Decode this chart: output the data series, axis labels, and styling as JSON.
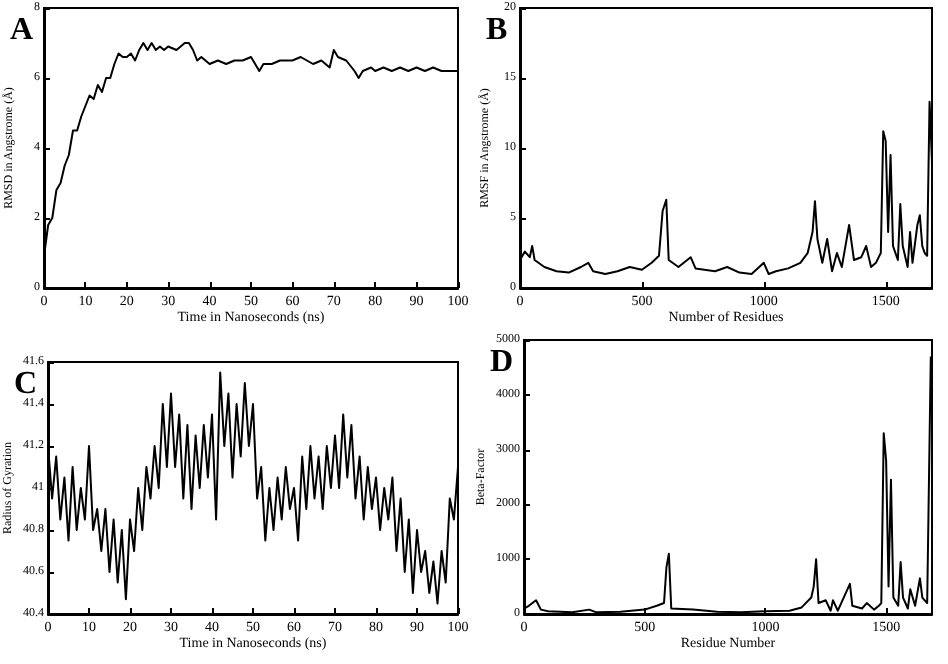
{
  "chart_data": [
    {
      "type": "line",
      "title": "A",
      "xlabel": "Time in Nanoseconds (ns)",
      "ylabel": "RMSD in Angstrome (Å)",
      "color": "#000000",
      "xlim": [
        0,
        100
      ],
      "ylim": [
        0,
        8
      ],
      "xticks": [
        0,
        10,
        20,
        30,
        40,
        50,
        60,
        70,
        80,
        90,
        100
      ],
      "yticks": [
        0,
        2,
        4,
        6,
        8
      ],
      "x": [
        0,
        1,
        2,
        3,
        4,
        5,
        6,
        7,
        8,
        9,
        10,
        11,
        12,
        13,
        14,
        15,
        16,
        17,
        18,
        19,
        20,
        21,
        22,
        23,
        24,
        25,
        26,
        27,
        28,
        29,
        30,
        32,
        34,
        35,
        36,
        37,
        38,
        40,
        42,
        44,
        46,
        48,
        50,
        51,
        52,
        53,
        55,
        57,
        60,
        62,
        65,
        67,
        69,
        70,
        71,
        73,
        75,
        76,
        77,
        79,
        80,
        82,
        84,
        86,
        88,
        90,
        92,
        94,
        96,
        98,
        100
      ],
      "values": [
        0.9,
        1.8,
        2.0,
        2.8,
        3.0,
        3.5,
        3.8,
        4.5,
        4.5,
        4.9,
        5.2,
        5.5,
        5.4,
        5.8,
        5.6,
        6.0,
        6.0,
        6.4,
        6.7,
        6.6,
        6.6,
        6.7,
        6.5,
        6.8,
        7.0,
        6.8,
        7.0,
        6.8,
        6.9,
        6.8,
        6.9,
        6.8,
        7.0,
        7.0,
        6.8,
        6.5,
        6.6,
        6.4,
        6.5,
        6.4,
        6.5,
        6.5,
        6.6,
        6.4,
        6.2,
        6.4,
        6.4,
        6.5,
        6.5,
        6.6,
        6.4,
        6.5,
        6.3,
        6.8,
        6.6,
        6.5,
        6.2,
        6.0,
        6.2,
        6.3,
        6.2,
        6.3,
        6.2,
        6.3,
        6.2,
        6.3,
        6.2,
        6.3,
        6.2,
        6.2,
        6.2
      ]
    },
    {
      "type": "line",
      "title": "B",
      "xlabel": "Number of Residues",
      "ylabel": "RMSF in Angstrome (Å)",
      "color": "#000000",
      "xlim": [
        0,
        1690
      ],
      "ylim": [
        0,
        20
      ],
      "xticks": [
        0,
        500,
        1000,
        1500
      ],
      "yticks": [
        0,
        5,
        10,
        15,
        20
      ],
      "x": [
        0,
        20,
        40,
        50,
        60,
        100,
        150,
        200,
        250,
        280,
        300,
        350,
        400,
        450,
        500,
        540,
        570,
        585,
        600,
        610,
        650,
        700,
        720,
        800,
        850,
        900,
        950,
        1000,
        1020,
        1050,
        1100,
        1150,
        1180,
        1200,
        1210,
        1220,
        1240,
        1260,
        1280,
        1300,
        1320,
        1350,
        1370,
        1400,
        1420,
        1440,
        1460,
        1480,
        1490,
        1500,
        1510,
        1520,
        1530,
        1550,
        1560,
        1570,
        1590,
        1600,
        1610,
        1630,
        1640,
        1650,
        1660,
        1670,
        1680,
        1690
      ],
      "values": [
        2,
        2.6,
        2.2,
        3.0,
        2,
        1.5,
        1.2,
        1.1,
        1.5,
        1.8,
        1.2,
        1.0,
        1.2,
        1.5,
        1.3,
        1.8,
        2.3,
        5.5,
        6.3,
        2,
        1.5,
        2.2,
        1.4,
        1.2,
        1.5,
        1.1,
        1.0,
        1.8,
        1.0,
        1.2,
        1.4,
        1.8,
        2.5,
        4.0,
        6.2,
        3.5,
        1.8,
        3.5,
        1.2,
        2.5,
        1.5,
        4.5,
        2.0,
        2.2,
        3.0,
        1.5,
        1.8,
        2.5,
        11.2,
        10.5,
        4.0,
        9.5,
        3,
        2.0,
        6.0,
        3,
        1.5,
        4.0,
        1.8,
        4.5,
        5.2,
        3,
        2.5,
        2.3,
        13.3,
        9
      ]
    },
    {
      "type": "line",
      "title": "C",
      "xlabel": "Time in Nanoseconds (ns)",
      "ylabel": "Radius of Gyration",
      "color": "#000000",
      "xlim": [
        0,
        100
      ],
      "ylim": [
        40.4,
        41.6
      ],
      "xticks": [
        0,
        10,
        20,
        30,
        40,
        50,
        60,
        70,
        80,
        90,
        100
      ],
      "yticks": [
        40.4,
        40.6,
        40.8,
        41,
        41.2,
        41.4,
        41.6
      ],
      "x": [
        0,
        1,
        2,
        3,
        4,
        5,
        6,
        7,
        8,
        9,
        10,
        11,
        12,
        13,
        14,
        15,
        16,
        17,
        18,
        19,
        20,
        21,
        22,
        23,
        24,
        25,
        26,
        27,
        28,
        29,
        30,
        31,
        32,
        33,
        34,
        35,
        36,
        37,
        38,
        39,
        40,
        41,
        42,
        43,
        44,
        45,
        46,
        47,
        48,
        49,
        50,
        51,
        52,
        53,
        54,
        55,
        56,
        57,
        58,
        59,
        60,
        61,
        62,
        63,
        64,
        65,
        66,
        67,
        68,
        69,
        70,
        71,
        72,
        73,
        74,
        75,
        76,
        77,
        78,
        79,
        80,
        81,
        82,
        83,
        84,
        85,
        86,
        87,
        88,
        89,
        90,
        91,
        92,
        93,
        94,
        95,
        96,
        97,
        98,
        99,
        100
      ],
      "values": [
        41.2,
        40.95,
        41.15,
        40.85,
        41.05,
        40.75,
        41.1,
        40.8,
        41.0,
        40.85,
        41.2,
        40.8,
        40.9,
        40.7,
        40.9,
        40.6,
        40.85,
        40.55,
        40.8,
        40.47,
        40.85,
        40.7,
        41.0,
        40.8,
        41.1,
        40.95,
        41.2,
        41.0,
        41.4,
        41.1,
        41.45,
        41.1,
        41.35,
        40.95,
        41.3,
        40.9,
        41.25,
        41.0,
        41.3,
        41.05,
        41.35,
        40.85,
        41.55,
        41.2,
        41.45,
        41.05,
        41.4,
        41.15,
        41.5,
        41.2,
        41.4,
        40.95,
        41.1,
        40.75,
        41.0,
        40.8,
        41.05,
        40.85,
        41.1,
        40.9,
        41.0,
        40.75,
        41.15,
        40.9,
        41.2,
        40.95,
        41.15,
        40.9,
        41.2,
        41.0,
        41.25,
        41.0,
        41.35,
        41.05,
        41.3,
        40.95,
        41.15,
        40.85,
        41.1,
        40.9,
        41.05,
        40.8,
        41.0,
        40.85,
        41.05,
        40.7,
        40.95,
        40.6,
        40.85,
        40.5,
        40.8,
        40.6,
        40.7,
        40.5,
        40.65,
        40.45,
        40.7,
        40.55,
        40.95,
        40.85,
        41.1
      ]
    },
    {
      "type": "line",
      "title": "D",
      "xlabel": "Residue Number",
      "ylabel": "Beta-Factor",
      "color": "#000000",
      "xlim": [
        0,
        1690
      ],
      "ylim": [
        0,
        5000
      ],
      "xticks": [
        0,
        500,
        1000,
        1500
      ],
      "yticks": [
        0,
        1000,
        2000,
        3000,
        4000,
        5000
      ],
      "x": [
        0,
        20,
        50,
        70,
        100,
        200,
        270,
        300,
        400,
        500,
        550,
        580,
        590,
        600,
        610,
        700,
        800,
        900,
        1000,
        1100,
        1150,
        1190,
        1200,
        1210,
        1220,
        1250,
        1270,
        1280,
        1300,
        1350,
        1360,
        1400,
        1420,
        1450,
        1470,
        1480,
        1490,
        1500,
        1510,
        1520,
        1530,
        1550,
        1560,
        1570,
        1590,
        1600,
        1620,
        1640,
        1650,
        1660,
        1670,
        1685
      ],
      "values": [
        100,
        150,
        250,
        80,
        50,
        30,
        80,
        30,
        40,
        80,
        150,
        200,
        850,
        1100,
        100,
        80,
        40,
        30,
        50,
        60,
        120,
        300,
        500,
        1000,
        200,
        250,
        60,
        250,
        60,
        550,
        150,
        100,
        200,
        80,
        150,
        200,
        3300,
        2800,
        500,
        2450,
        300,
        150,
        950,
        300,
        100,
        450,
        150,
        650,
        300,
        250,
        200,
        4700
      ]
    }
  ]
}
